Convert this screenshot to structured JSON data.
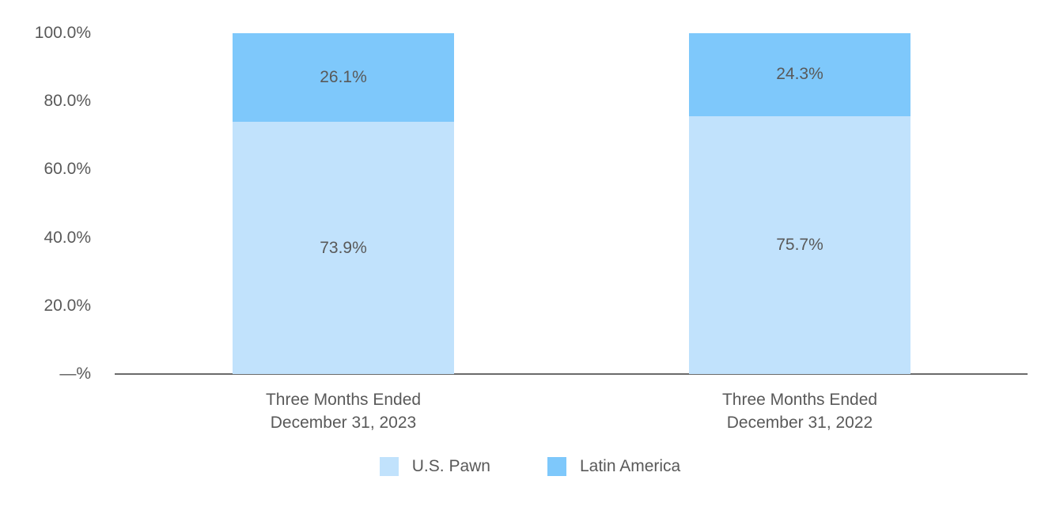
{
  "chart_data": {
    "type": "bar",
    "stacked": true,
    "title": "",
    "xlabel": "",
    "ylabel": "",
    "ylim": [
      0,
      100
    ],
    "grid": false,
    "legend_position": "bottom-center",
    "categories": [
      "Three Months Ended\nDecember 31, 2023",
      "Three Months Ended\nDecember 31, 2022"
    ],
    "series": [
      {
        "name": "U.S. Pawn",
        "color": "#C1E2FC",
        "values": [
          73.9,
          75.7
        ],
        "labels": [
          "73.9%",
          "75.7%"
        ]
      },
      {
        "name": "Latin America",
        "color": "#7EC8FB",
        "values": [
          26.1,
          24.3
        ],
        "labels": [
          "26.1%",
          "24.3%"
        ]
      }
    ],
    "yticks": [
      {
        "label": "—%",
        "value": 0
      },
      {
        "label": "20.0%",
        "value": 20
      },
      {
        "label": "40.0%",
        "value": 40
      },
      {
        "label": "60.0%",
        "value": 60
      },
      {
        "label": "80.0%",
        "value": 80
      },
      {
        "label": "100.0%",
        "value": 100
      }
    ],
    "colors": {
      "text": "#595959",
      "axis": "#6B6B6B",
      "background": "#FFFFFF"
    }
  }
}
